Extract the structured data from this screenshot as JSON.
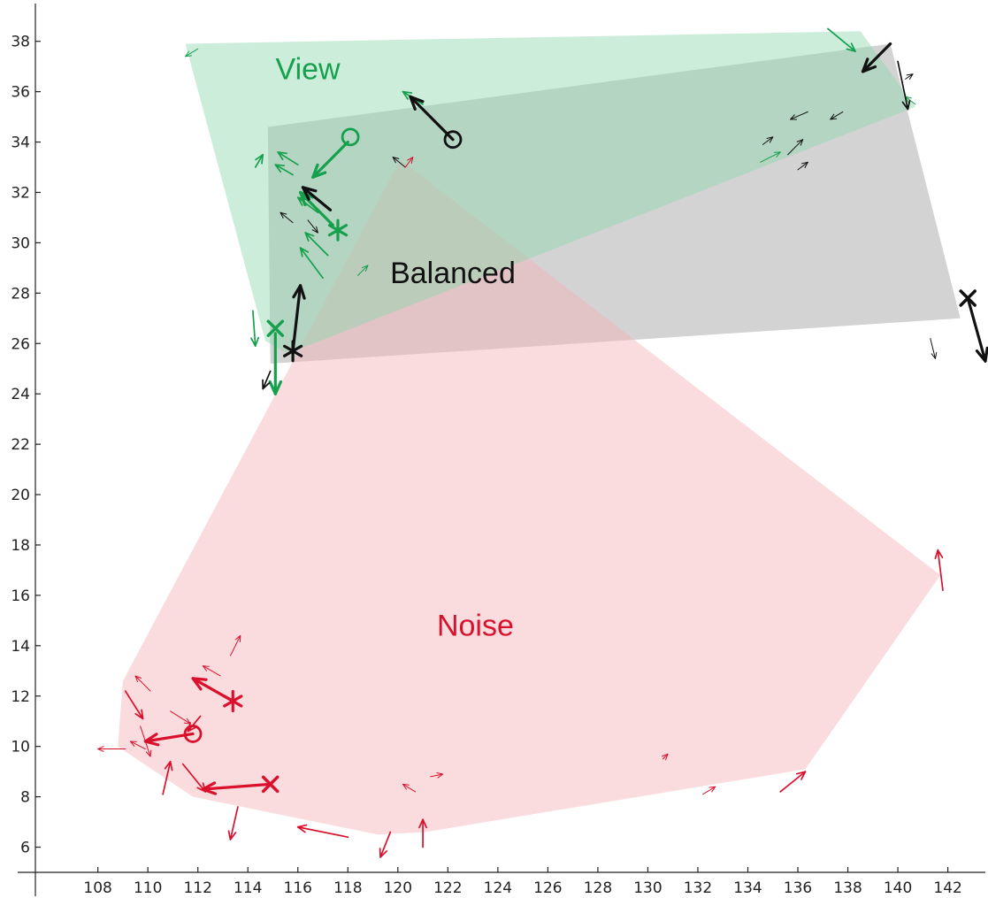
{
  "chart_data": {
    "type": "scatter",
    "title": "",
    "xlabel": "",
    "ylabel": "",
    "xlim": [
      105.5,
      143.5
    ],
    "ylim": [
      5,
      39.5
    ],
    "x_ticks": [
      108,
      110,
      112,
      114,
      116,
      118,
      120,
      122,
      124,
      126,
      128,
      130,
      132,
      134,
      136,
      138,
      140,
      142
    ],
    "y_ticks": [
      6,
      8,
      10,
      12,
      14,
      16,
      18,
      20,
      22,
      24,
      26,
      28,
      30,
      32,
      34,
      36,
      38
    ],
    "grid": false,
    "legend": "none",
    "colors": {
      "View": "#16a04e",
      "Balanced": "#111111",
      "Noise": "#d9112d"
    },
    "regions": [
      {
        "label": "Balanced",
        "color": "#111111",
        "fill": "#9e9e9e",
        "label_pos": [
          122.2,
          28.4
        ],
        "polygon": [
          [
            114.8,
            34.6
          ],
          [
            139.7,
            37.9
          ],
          [
            142.5,
            27.0
          ],
          [
            114.9,
            25.2
          ]
        ]
      },
      {
        "label": "Noise",
        "color": "#d9112d",
        "fill": "#f4b1b5",
        "label_pos": [
          123.1,
          14.4
        ],
        "polygon": [
          [
            120.1,
            33.3
          ],
          [
            141.7,
            16.8
          ],
          [
            136.3,
            9.1
          ],
          [
            121.1,
            6.6
          ],
          [
            119.2,
            6.5
          ],
          [
            111.8,
            8.0
          ],
          [
            108.8,
            10.0
          ],
          [
            109.0,
            12.6
          ]
        ]
      },
      {
        "label": "View",
        "color": "#16a04e",
        "fill": "#8fd8ad",
        "label_pos": [
          116.4,
          36.5
        ],
        "polygon": [
          [
            111.5,
            37.9
          ],
          [
            138.5,
            38.4
          ],
          [
            140.7,
            35.4
          ],
          [
            115.6,
            25.6
          ],
          [
            114.7,
            26.1
          ]
        ]
      }
    ],
    "markers": [
      {
        "series": "View",
        "shape": "circle",
        "x": 118.1,
        "y": 34.2
      },
      {
        "series": "View",
        "shape": "star",
        "x": 117.6,
        "y": 30.5
      },
      {
        "series": "View",
        "shape": "x",
        "x": 115.1,
        "y": 26.6
      },
      {
        "series": "Balanced",
        "shape": "circle",
        "x": 122.2,
        "y": 34.1
      },
      {
        "series": "Balanced",
        "shape": "star",
        "x": 115.8,
        "y": 25.7
      },
      {
        "series": "Balanced",
        "shape": "x",
        "x": 142.8,
        "y": 27.8
      },
      {
        "series": "Noise",
        "shape": "circle",
        "x": 111.8,
        "y": 10.5
      },
      {
        "series": "Noise",
        "shape": "star",
        "x": 113.4,
        "y": 11.8
      },
      {
        "series": "Noise",
        "shape": "x",
        "x": 114.9,
        "y": 8.5
      }
    ],
    "arrows": [
      {
        "series": "View",
        "from": [
          118.0,
          34.0
        ],
        "to": [
          116.6,
          32.6
        ],
        "weight": "bold"
      },
      {
        "series": "View",
        "from": [
          117.4,
          30.7
        ],
        "to": [
          116.1,
          32.0
        ],
        "weight": "bold"
      },
      {
        "series": "View",
        "from": [
          115.1,
          26.4
        ],
        "to": [
          115.1,
          24.0
        ],
        "weight": "bold"
      },
      {
        "series": "View",
        "from": [
          137.2,
          38.5
        ],
        "to": [
          138.3,
          37.6
        ],
        "weight": "normal"
      },
      {
        "series": "View",
        "from": [
          116.0,
          33.1
        ],
        "to": [
          115.2,
          33.6
        ],
        "weight": "normal"
      },
      {
        "series": "View",
        "from": [
          116.8,
          31.2
        ],
        "to": [
          116.0,
          31.8
        ],
        "weight": "normal"
      },
      {
        "series": "View",
        "from": [
          117.2,
          29.5
        ],
        "to": [
          116.3,
          30.4
        ],
        "weight": "normal"
      },
      {
        "series": "View",
        "from": [
          117.0,
          28.6
        ],
        "to": [
          116.1,
          29.8
        ],
        "weight": "normal"
      },
      {
        "series": "View",
        "from": [
          114.2,
          27.3
        ],
        "to": [
          114.3,
          25.9
        ],
        "weight": "normal"
      },
      {
        "series": "View",
        "from": [
          121.0,
          35.5
        ],
        "to": [
          120.2,
          36.0
        ],
        "weight": "normal"
      },
      {
        "series": "View",
        "from": [
          114.3,
          33.0
        ],
        "to": [
          114.6,
          33.5
        ],
        "weight": "normal"
      },
      {
        "series": "View",
        "from": [
          115.8,
          32.7
        ],
        "to": [
          115.1,
          33.1
        ],
        "weight": "normal"
      },
      {
        "series": "View",
        "from": [
          118.4,
          28.7
        ],
        "to": [
          118.8,
          29.1
        ],
        "weight": "thin"
      },
      {
        "series": "View",
        "from": [
          134.5,
          33.2
        ],
        "to": [
          135.3,
          33.6
        ],
        "weight": "thin"
      },
      {
        "series": "View",
        "from": [
          140.7,
          35.5
        ],
        "to": [
          140.3,
          35.8
        ],
        "weight": "thin"
      },
      {
        "series": "View",
        "from": [
          112.0,
          37.7
        ],
        "to": [
          111.5,
          37.4
        ],
        "weight": "thin"
      },
      {
        "series": "Balanced",
        "from": [
          122.2,
          34.1
        ],
        "to": [
          120.5,
          35.8
        ],
        "weight": "bold"
      },
      {
        "series": "Balanced",
        "from": [
          115.8,
          25.7
        ],
        "to": [
          116.1,
          28.3
        ],
        "weight": "bold"
      },
      {
        "series": "Balanced",
        "from": [
          142.8,
          27.8
        ],
        "to": [
          143.5,
          25.3
        ],
        "weight": "bold"
      },
      {
        "series": "Balanced",
        "from": [
          139.7,
          37.9
        ],
        "to": [
          138.6,
          36.8
        ],
        "weight": "bold"
      },
      {
        "series": "Balanced",
        "from": [
          117.3,
          31.3
        ],
        "to": [
          116.2,
          32.2
        ],
        "weight": "bold"
      },
      {
        "series": "Balanced",
        "from": [
          140.0,
          37.2
        ],
        "to": [
          140.4,
          35.3
        ],
        "weight": "normal"
      },
      {
        "series": "Balanced",
        "from": [
          114.9,
          24.9
        ],
        "to": [
          114.6,
          24.2
        ],
        "weight": "normal"
      },
      {
        "series": "Balanced",
        "from": [
          141.3,
          26.2
        ],
        "to": [
          141.5,
          25.4
        ],
        "weight": "thin"
      },
      {
        "series": "Balanced",
        "from": [
          135.6,
          33.5
        ],
        "to": [
          136.2,
          34.1
        ],
        "weight": "thin"
      },
      {
        "series": "Balanced",
        "from": [
          134.6,
          33.9
        ],
        "to": [
          135.0,
          34.2
        ],
        "weight": "thin"
      },
      {
        "series": "Balanced",
        "from": [
          136.0,
          32.9
        ],
        "to": [
          136.4,
          33.2
        ],
        "weight": "thin"
      },
      {
        "series": "Balanced",
        "from": [
          136.4,
          35.2
        ],
        "to": [
          135.7,
          34.9
        ],
        "weight": "thin"
      },
      {
        "series": "Balanced",
        "from": [
          137.8,
          35.2
        ],
        "to": [
          137.3,
          34.9
        ],
        "weight": "thin"
      },
      {
        "series": "Balanced",
        "from": [
          140.3,
          36.5
        ],
        "to": [
          140.6,
          36.7
        ],
        "weight": "thin"
      },
      {
        "series": "Balanced",
        "from": [
          116.4,
          30.9
        ],
        "to": [
          116.8,
          30.4
        ],
        "weight": "thin"
      },
      {
        "series": "Balanced",
        "from": [
          115.8,
          30.8
        ],
        "to": [
          115.3,
          31.2
        ],
        "weight": "thin"
      },
      {
        "series": "Balanced",
        "from": [
          120.3,
          33.0
        ],
        "to": [
          119.8,
          33.4
        ],
        "weight": "thin"
      },
      {
        "series": "Noise",
        "from": [
          113.4,
          11.8
        ],
        "to": [
          111.8,
          12.7
        ],
        "weight": "bold"
      },
      {
        "series": "Noise",
        "from": [
          114.9,
          8.5
        ],
        "to": [
          112.2,
          8.3
        ],
        "weight": "bold"
      },
      {
        "series": "Noise",
        "from": [
          111.8,
          10.5
        ],
        "to": [
          109.9,
          10.2
        ],
        "weight": "bold"
      },
      {
        "series": "Noise",
        "from": [
          141.8,
          16.2
        ],
        "to": [
          141.6,
          17.8
        ],
        "weight": "normal"
      },
      {
        "series": "Noise",
        "from": [
          135.3,
          8.2
        ],
        "to": [
          136.3,
          9.0
        ],
        "weight": "normal"
      },
      {
        "series": "Noise",
        "from": [
          118.0,
          6.4
        ],
        "to": [
          116.0,
          6.8
        ],
        "weight": "normal"
      },
      {
        "series": "Noise",
        "from": [
          119.7,
          6.6
        ],
        "to": [
          119.3,
          5.6
        ],
        "weight": "normal"
      },
      {
        "series": "Noise",
        "from": [
          121.0,
          6.0
        ],
        "to": [
          121.0,
          7.1
        ],
        "weight": "normal"
      },
      {
        "series": "Noise",
        "from": [
          113.6,
          7.6
        ],
        "to": [
          113.3,
          6.3
        ],
        "weight": "normal"
      },
      {
        "series": "Noise",
        "from": [
          110.6,
          8.1
        ],
        "to": [
          110.9,
          9.4
        ],
        "weight": "normal"
      },
      {
        "series": "Noise",
        "from": [
          109.1,
          12.2
        ],
        "to": [
          109.8,
          11.1
        ],
        "weight": "normal"
      },
      {
        "series": "Noise",
        "from": [
          111.4,
          9.3
        ],
        "to": [
          112.3,
          8.2
        ],
        "weight": "normal"
      },
      {
        "series": "Noise",
        "from": [
          112.1,
          11.2
        ],
        "to": [
          111.6,
          10.6
        ],
        "weight": "normal"
      },
      {
        "series": "Noise",
        "from": [
          110.9,
          11.4
        ],
        "to": [
          111.7,
          10.9
        ],
        "weight": "thin"
      },
      {
        "series": "Noise",
        "from": [
          109.7,
          10.8
        ],
        "to": [
          110.1,
          9.6
        ],
        "weight": "thin"
      },
      {
        "series": "Noise",
        "from": [
          109.1,
          9.9
        ],
        "to": [
          108.0,
          9.9
        ],
        "weight": "thin"
      },
      {
        "series": "Noise",
        "from": [
          109.9,
          9.9
        ],
        "to": [
          109.3,
          10.2
        ],
        "weight": "thin"
      },
      {
        "series": "Noise",
        "from": [
          110.1,
          12.2
        ],
        "to": [
          109.5,
          12.8
        ],
        "weight": "thin"
      },
      {
        "series": "Noise",
        "from": [
          112.9,
          12.8
        ],
        "to": [
          112.2,
          13.2
        ],
        "weight": "thin"
      },
      {
        "series": "Noise",
        "from": [
          113.3,
          13.6
        ],
        "to": [
          113.7,
          14.4
        ],
        "weight": "thin"
      },
      {
        "series": "Noise",
        "from": [
          120.7,
          8.2
        ],
        "to": [
          120.2,
          8.5
        ],
        "weight": "thin"
      },
      {
        "series": "Noise",
        "from": [
          121.3,
          8.8
        ],
        "to": [
          121.8,
          8.9
        ],
        "weight": "thin"
      },
      {
        "series": "Noise",
        "from": [
          130.6,
          9.5
        ],
        "to": [
          130.8,
          9.7
        ],
        "weight": "thin"
      },
      {
        "series": "Noise",
        "from": [
          132.2,
          8.1
        ],
        "to": [
          132.7,
          8.4
        ],
        "weight": "thin"
      },
      {
        "series": "Noise",
        "from": [
          120.3,
          33.0
        ],
        "to": [
          120.6,
          33.4
        ],
        "weight": "thin"
      }
    ]
  }
}
